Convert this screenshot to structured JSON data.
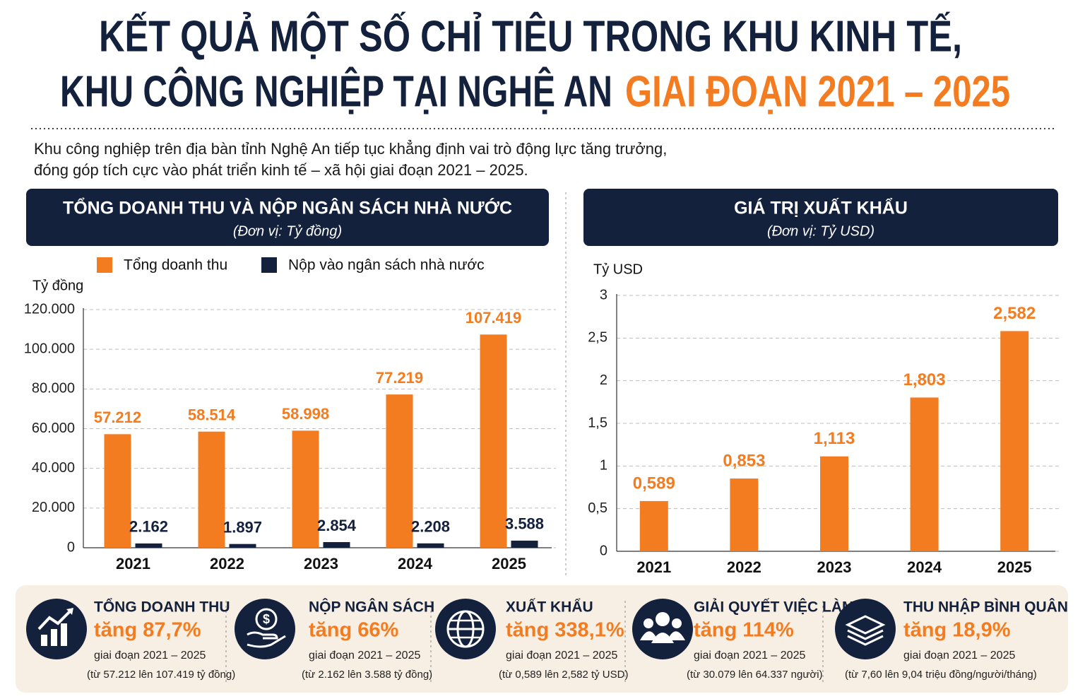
{
  "header": {
    "title_line1": "KẾT QUẢ MỘT SỐ CHỈ TIÊU TRONG KHU KINH TẾ,",
    "title_line2": "KHU CÔNG NGHIỆP TẠI NGHỆ AN",
    "title_highlight": "GIAI ĐOẠN 2021 – 2025",
    "intro": [
      "Khu công nghiệp trên địa bàn tỉnh Nghệ An tiếp tục khẳng định vai trò động lực tăng trưởng,",
      "đóng góp tích cực vào phát triển kinh tế – xã hội giai đoạn 2021 – 2025."
    ]
  },
  "chart_data": [
    {
      "type": "bar",
      "title": "TỔNG DOANH THU VÀ NỘP NGÂN SÁCH NHÀ NƯỚC",
      "subtitle": "(Đơn vị: Tỷ đồng)",
      "y_label": "Tỷ đồng",
      "categories": [
        "2021",
        "2022",
        "2023",
        "2024",
        "2025"
      ],
      "series": [
        {
          "name": "Tổng doanh thu",
          "color": "#f47c20",
          "values": [
            57212,
            58514,
            58998,
            77219,
            107419
          ],
          "value_labels": [
            "57.212",
            "58.514",
            "58.998",
            "77.219",
            "107.419"
          ]
        },
        {
          "name": "Nộp vào ngân sách nhà nước",
          "color": "#14213d",
          "values": [
            2162,
            1897,
            2854,
            2208,
            3588
          ],
          "value_labels": [
            "2.162",
            "1.897",
            "2.854",
            "2.208",
            "3.588"
          ]
        }
      ],
      "ylim": [
        0,
        120000
      ],
      "yticks": [
        0,
        {
          "value": 20000,
          "label": "20.000"
        },
        {
          "value": 40000,
          "label": "40.000"
        },
        {
          "value": 60000,
          "label": "60.000"
        },
        {
          "value": 80000,
          "label": "80.000"
        },
        {
          "value": 100000,
          "label": "100.000"
        },
        {
          "value": 120000,
          "label": "120.000"
        }
      ],
      "grid": true
    },
    {
      "type": "bar",
      "title": "GIÁ TRỊ XUẤT KHẨU",
      "subtitle": "(Đơn vị: Tỷ USD)",
      "y_label": "Tỷ USD",
      "categories": [
        "2021",
        "2022",
        "2023",
        "2024",
        "2025"
      ],
      "values": [
        0.589,
        0.853,
        1.113,
        1.803,
        2.582
      ],
      "value_labels": [
        "0,589",
        "0,853",
        "1,113",
        "1,803",
        "2,582"
      ],
      "color": "#f47c20",
      "ylim": [
        0,
        3
      ],
      "yticks": [
        0,
        {
          "value": 0.5,
          "label": "0,5"
        },
        1,
        {
          "value": 1.5,
          "label": "1,5"
        },
        2,
        {
          "value": 2.5,
          "label": "2,5"
        },
        3
      ],
      "grid": true
    }
  ],
  "stats": [
    {
      "title": "TỔNG DOANH THU",
      "value": "tăng 87,7%",
      "period": "giai đoạn 2021 – 2025",
      "detail": "(từ 57.212 lên 107.419 tỷ đồng)"
    },
    {
      "title": "NỘP NGÂN SÁCH",
      "value": "tăng 66%",
      "period": "giai đoạn 2021 – 2025",
      "detail": "(từ 2.162 lên 3.588 tỷ đồng)"
    },
    {
      "title": "XUẤT KHẨU",
      "value": "tăng 338,1%",
      "period": "giai đoạn 2021 – 2025",
      "detail": "(từ 0,589 lên 2,582 tỷ USD)"
    },
    {
      "title": "GIẢI QUYẾT VIỆC LÀM",
      "value": "tăng 114%",
      "period": "giai đoạn 2021 – 2025",
      "detail": "(từ 30.079 lên 64.337 người)"
    },
    {
      "title": "THU NHẬP BÌNH QUÂN",
      "value": "tăng 18,9%",
      "period": "giai đoạn 2021 – 2025",
      "detail": "(từ 7,60 lên 9,04 triệu đồng/người/tháng)"
    }
  ]
}
